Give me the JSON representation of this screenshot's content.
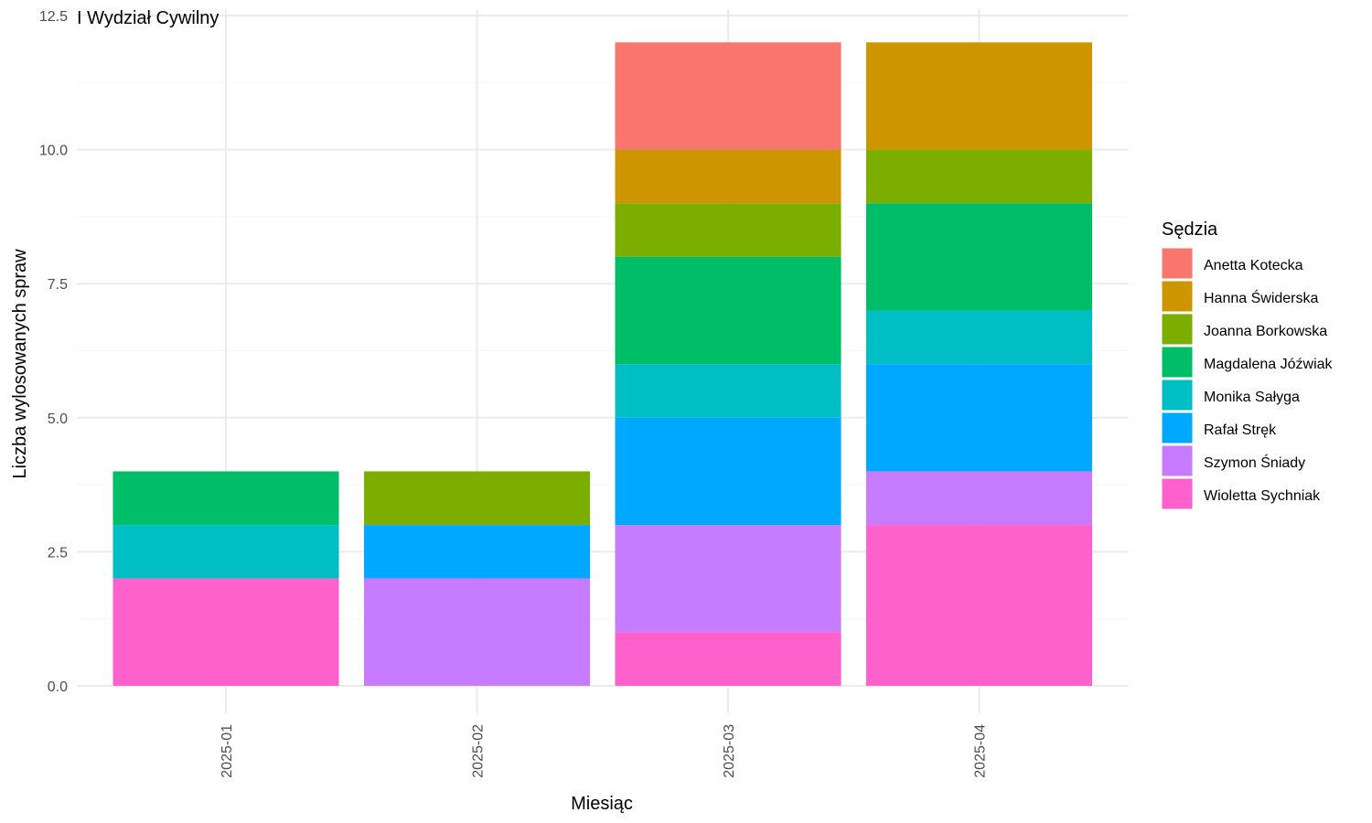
{
  "chart_data": {
    "type": "bar",
    "stacked": true,
    "title": "I Wydział Cywilny",
    "xlabel": "Miesiąc",
    "ylabel": "Liczba wylosowanych spraw",
    "categories": [
      "2025-01",
      "2025-02",
      "2025-03",
      "2025-04"
    ],
    "ylim": [
      0,
      12.5
    ],
    "yticks": [
      "0.0",
      "2.5",
      "5.0",
      "7.5",
      "10.0",
      "12.5"
    ],
    "grid": true,
    "legend_title": "Sędzia",
    "legend_position": "right",
    "series": [
      {
        "name": "Anetta Kotecka",
        "color": "#F8766D",
        "values": [
          0,
          0,
          2,
          0
        ]
      },
      {
        "name": "Hanna Świderska",
        "color": "#CD9600",
        "values": [
          0,
          0,
          1,
          2
        ]
      },
      {
        "name": "Joanna Borkowska",
        "color": "#7CAE00",
        "values": [
          0,
          1,
          1,
          1
        ]
      },
      {
        "name": "Magdalena Jóźwiak",
        "color": "#00BE67",
        "values": [
          1,
          0,
          2,
          2
        ]
      },
      {
        "name": "Monika Sałyga",
        "color": "#00BFC4",
        "values": [
          1,
          0,
          1,
          1
        ]
      },
      {
        "name": "Rafał Stręk",
        "color": "#00A9FF",
        "values": [
          0,
          1,
          2,
          2
        ]
      },
      {
        "name": "Szymon Śniady",
        "color": "#C77CFF",
        "values": [
          0,
          2,
          2,
          1
        ]
      },
      {
        "name": "Wioletta Sychniak",
        "color": "#FF61CC",
        "values": [
          2,
          0,
          1,
          3
        ]
      }
    ]
  }
}
